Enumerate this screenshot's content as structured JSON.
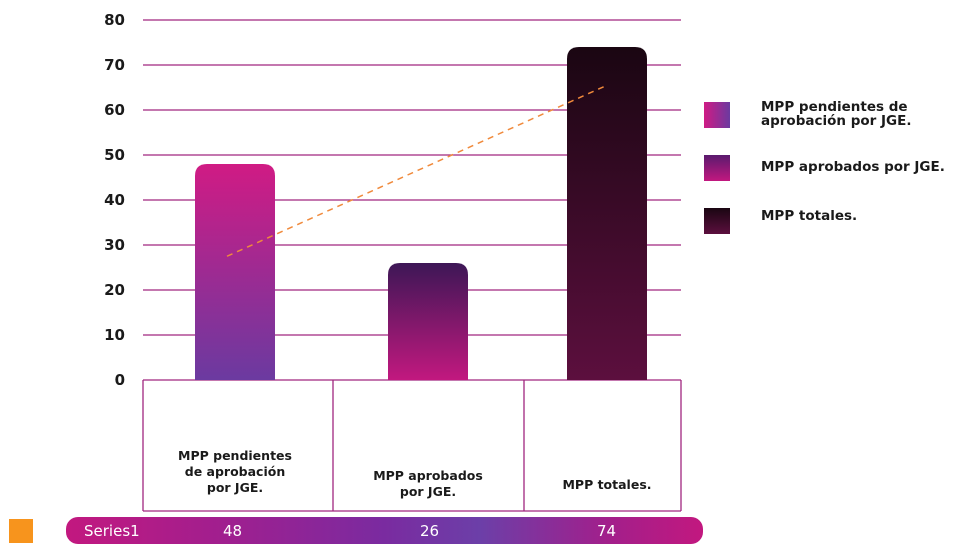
{
  "chart_data": {
    "type": "bar",
    "categories": [
      "MPP pendientes de aprobación por JGE.",
      "MPP aprobados por JGE.",
      "MPP totales."
    ],
    "category_lines": [
      [
        "MPP pendientes",
        "de aprobación",
        "por JGE."
      ],
      [
        "MPP aprobados",
        "por JGE."
      ],
      [
        "MPP totales."
      ]
    ],
    "series": [
      {
        "name": "Series1",
        "values": [
          48,
          26,
          74
        ]
      }
    ],
    "y_ticks": [
      "0",
      "10",
      "20",
      "30",
      "40",
      "50",
      "60",
      "70",
      "80"
    ],
    "ylim": [
      0,
      80
    ],
    "trendline": {
      "type": "linear",
      "dashed": true,
      "color": "#f08a3c",
      "start": 27.5,
      "end": 65.5
    },
    "legend": {
      "placement": "right",
      "entries": [
        "MPP pendientes de aprobación por JGE.",
        "MPP aprobados por JGE.",
        "MPP totales."
      ]
    },
    "grid": true,
    "data_table": {
      "row_label": "Series1",
      "values": [
        "48",
        "26",
        "74"
      ]
    }
  },
  "colors": {
    "gridline": "#a0267f",
    "bar1_top": "#d01b84",
    "bar1_bottom": "#6b3aa0",
    "bar2_top": "#3d1756",
    "bar2_bottom": "#c2187f",
    "bar3_top": "#1a0612",
    "bar3_bottom": "#5c0f3e",
    "series_marker": "#f7941d"
  }
}
